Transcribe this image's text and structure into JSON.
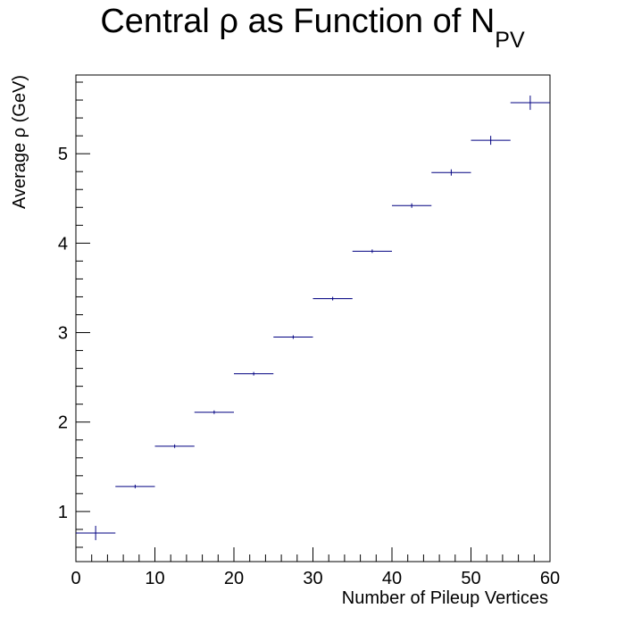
{
  "chart_data": {
    "type": "scatter",
    "title": "Central ρ as Function of N",
    "title_subscript": "PV",
    "xlabel": "Number of Pileup Vertices",
    "ylabel": "Average ρ (GeV)",
    "xlim": [
      0,
      60
    ],
    "ylim": [
      0.44,
      5.88
    ],
    "x_ticks": [
      0,
      10,
      20,
      30,
      40,
      50,
      60
    ],
    "y_ticks": [
      1,
      2,
      3,
      4,
      5
    ],
    "grid": false,
    "marker_color": "#000080",
    "series": [
      {
        "x": [
          2.5,
          7.5,
          12.5,
          17.5,
          22.5,
          27.5,
          32.5,
          37.5,
          42.5,
          47.5,
          52.5,
          57.5
        ],
        "x_halfwidth": 2.5,
        "y": [
          0.76,
          1.28,
          1.73,
          2.11,
          2.54,
          2.95,
          3.38,
          3.91,
          4.42,
          4.79,
          5.15,
          5.57
        ],
        "y_err": [
          0.08,
          0.02,
          0.01,
          0.01,
          0.01,
          0.01,
          0.015,
          0.015,
          0.025,
          0.035,
          0.05,
          0.08
        ]
      }
    ]
  }
}
